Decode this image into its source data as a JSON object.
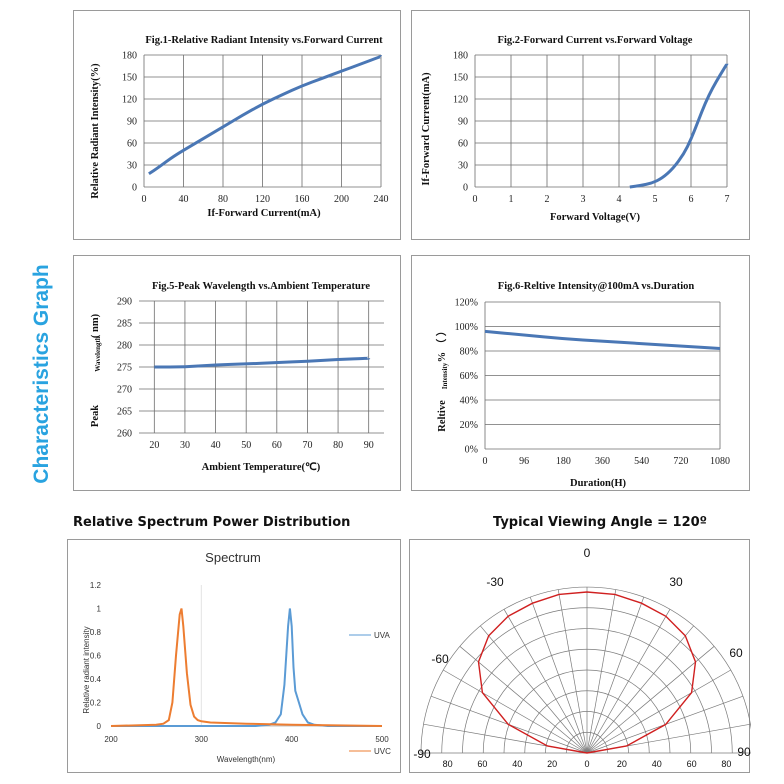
{
  "side_title": "Characteristics Graph",
  "spectrum_heading": "Relative Spectrum Power Distribution",
  "angle_heading": "Typical Viewing Angle = 120º",
  "colors": {
    "accent": "#29a3e0",
    "line": "#4a77b5",
    "uva": "#5b9bd5",
    "uvc": "#ed7d31",
    "polar": "#d02020"
  },
  "chart_data": [
    {
      "type": "line",
      "title": "Fig.1-Relative Radiant Intensity vs.Forward Current",
      "xlabel": "If-Forward Current(mA)",
      "ylabel": "Relative Radiant Intensity(%)",
      "xlim": [
        0,
        240
      ],
      "ylim": [
        0,
        180
      ],
      "xticks": [
        "0",
        "40",
        "80",
        "120",
        "160",
        "200",
        "240"
      ],
      "yticks": [
        "0",
        "30",
        "60",
        "90",
        "120",
        "150",
        "180"
      ],
      "grid": true,
      "series": [
        {
          "x": [
            5,
            15,
            30,
            50,
            80,
            100,
            120,
            140,
            160,
            180,
            200,
            220,
            240
          ],
          "y": [
            18,
            27,
            42,
            58,
            82,
            98,
            113,
            126,
            138,
            148,
            158,
            168,
            178
          ]
        }
      ]
    },
    {
      "type": "line",
      "title": "Fig.2-Forward Current vs.Forward Voltage",
      "xlabel": "Forward Voltage(V)",
      "ylabel": "If-Forward Current(mA)",
      "xlim": [
        0,
        7
      ],
      "ylim": [
        0,
        180
      ],
      "xticks": [
        "0",
        "1",
        "2",
        "3",
        "4",
        "5",
        "6",
        "7"
      ],
      "yticks": [
        "0",
        "30",
        "60",
        "90",
        "120",
        "150",
        "180"
      ],
      "grid": true,
      "series": [
        {
          "x": [
            4.3,
            4.6,
            4.9,
            5.2,
            5.5,
            5.8,
            6.0,
            6.2,
            6.4,
            6.6,
            6.8,
            7.0
          ],
          "y": [
            0,
            2,
            5,
            12,
            25,
            45,
            65,
            90,
            115,
            135,
            152,
            168
          ]
        }
      ]
    },
    {
      "type": "line",
      "title": "Fig.5-Peak Wavelength vs.Ambient Temperature",
      "xlabel": "Ambient Temperature(℃)",
      "ylabel_parts": [
        "Peak",
        "Wavelength",
        "( nm)"
      ],
      "xlim": [
        15,
        95
      ],
      "ylim": [
        260,
        290
      ],
      "xticks": [
        "20",
        "30",
        "40",
        "50",
        "60",
        "70",
        "80",
        "90"
      ],
      "yticks": [
        "260",
        "265",
        "270",
        "275",
        "280",
        "285",
        "290"
      ],
      "grid": true,
      "series": [
        {
          "x": [
            20,
            30,
            40,
            50,
            60,
            70,
            80,
            90
          ],
          "y": [
            275,
            275,
            275.5,
            275.7,
            276,
            276.3,
            276.7,
            277
          ]
        }
      ]
    },
    {
      "type": "line",
      "title": "Fig.6-Reltive Intensity@100mA vs.Duration",
      "xlabel": "Duration(H)",
      "ylabel_parts": [
        "Reltive",
        "Intensity",
        "% （ ）"
      ],
      "ylim": [
        0,
        120
      ],
      "xticks": [
        "0",
        "96",
        "180",
        "360",
        "540",
        "720",
        "1080"
      ],
      "yticks": [
        "0%",
        "20%",
        "40%",
        "60%",
        "80%",
        "100%",
        "120%"
      ],
      "grid": true,
      "series": [
        {
          "x_index": [
            0,
            1,
            2,
            3,
            4,
            5,
            6
          ],
          "y": [
            96,
            93,
            90,
            88,
            86,
            84,
            82
          ]
        }
      ]
    },
    {
      "type": "line",
      "title": "Spectrum",
      "xlabel": "Wavelength(nm)",
      "ylabel": "Relative radiant intensity",
      "xlim": [
        200,
        500
      ],
      "ylim": [
        0,
        1.2
      ],
      "xticks": [
        "200",
        "300",
        "400",
        "500"
      ],
      "yticks": [
        "0",
        "0.2",
        "0.4",
        "0.6",
        "0.8",
        "1",
        "1.2"
      ],
      "grid": false,
      "series": [
        {
          "name": "UVA",
          "x": [
            200,
            360,
            375,
            382,
            388,
            392,
            396,
            398,
            400,
            402,
            404,
            408,
            412,
            418,
            425,
            440,
            500
          ],
          "y": [
            0,
            0,
            0.01,
            0.03,
            0.1,
            0.35,
            0.85,
            1.0,
            0.85,
            0.5,
            0.3,
            0.2,
            0.1,
            0.03,
            0.01,
            0,
            0
          ]
        },
        {
          "name": "UVC",
          "x": [
            200,
            250,
            258,
            264,
            268,
            272,
            276,
            278,
            280,
            284,
            288,
            292,
            296,
            300,
            310,
            350,
            400,
            500
          ],
          "y": [
            0,
            0.01,
            0.02,
            0.05,
            0.2,
            0.6,
            0.95,
            1.0,
            0.85,
            0.45,
            0.18,
            0.08,
            0.05,
            0.04,
            0.03,
            0.02,
            0.01,
            0
          ]
        }
      ]
    },
    {
      "type": "polar",
      "angle_labels": [
        "0",
        "-30",
        "30",
        "-60",
        "60",
        "-90",
        "90"
      ],
      "radial_ticks": [
        "80",
        "60",
        "40",
        "20",
        "0",
        "20",
        "40",
        "60",
        "80"
      ],
      "series": [
        {
          "angle_deg": [
            -90,
            -80,
            -70,
            -60,
            -50,
            -40,
            -30,
            -20,
            -10,
            0,
            10,
            20,
            30,
            40,
            50,
            60,
            70,
            80,
            90
          ],
          "r": [
            0,
            0.25,
            0.52,
            0.75,
            0.88,
            0.95,
            0.98,
            0.99,
            1.0,
            1.0,
            1.0,
            0.99,
            0.98,
            0.95,
            0.88,
            0.75,
            0.52,
            0.25,
            0
          ]
        }
      ]
    }
  ]
}
